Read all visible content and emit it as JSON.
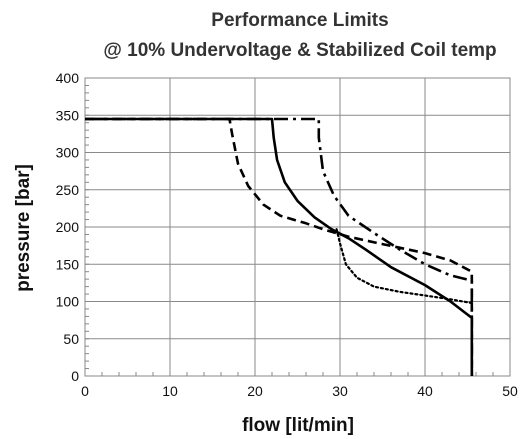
{
  "chart_data": {
    "type": "line",
    "title": "Performance Limits",
    "subtitle": "@ 10% Undervoltage & Stabilized Coil temp",
    "xlabel": "flow [lit/min]",
    "ylabel": "pressure [bar]",
    "xlim": [
      0,
      50
    ],
    "ylim": [
      0,
      400
    ],
    "x_ticks": [
      "0",
      "10",
      "20",
      "30",
      "40",
      "50"
    ],
    "y_ticks": [
      "0",
      "50",
      "100",
      "150",
      "200",
      "250",
      "300",
      "350",
      "400"
    ],
    "grid": true,
    "legend": "none",
    "series": [
      {
        "style": "solid",
        "points": [
          [
            0,
            345
          ],
          [
            22,
            345
          ],
          [
            22.2,
            320
          ],
          [
            22.6,
            290
          ],
          [
            23.5,
            260
          ],
          [
            25,
            235
          ],
          [
            27,
            213
          ],
          [
            29,
            197
          ],
          [
            31,
            185
          ],
          [
            33,
            170
          ],
          [
            36,
            146
          ],
          [
            40,
            122
          ],
          [
            43,
            100
          ],
          [
            45.5,
            78
          ],
          [
            45.5,
            0
          ]
        ]
      },
      {
        "style": "dashed",
        "points": [
          [
            0,
            345
          ],
          [
            17,
            345
          ],
          [
            17.3,
            325
          ],
          [
            18,
            285
          ],
          [
            19.2,
            255
          ],
          [
            21,
            230
          ],
          [
            23,
            215
          ],
          [
            26,
            205
          ],
          [
            28,
            197
          ],
          [
            31,
            187
          ],
          [
            35,
            177
          ],
          [
            40,
            165
          ],
          [
            43,
            155
          ],
          [
            45.5,
            140
          ],
          [
            45.5,
            0
          ]
        ]
      },
      {
        "style": "dashdot",
        "points": [
          [
            0,
            345
          ],
          [
            27.5,
            345
          ],
          [
            27.5,
            320
          ],
          [
            28,
            275
          ],
          [
            29.3,
            242
          ],
          [
            31,
            215
          ],
          [
            34,
            192
          ],
          [
            37,
            170
          ],
          [
            40,
            150
          ],
          [
            43,
            135
          ],
          [
            45.5,
            128
          ],
          [
            45.5,
            0
          ]
        ]
      },
      {
        "style": "dotted",
        "points": [
          [
            29.6,
            197
          ],
          [
            30,
            178
          ],
          [
            30.7,
            150
          ],
          [
            32,
            132
          ],
          [
            34,
            120
          ],
          [
            37,
            113
          ],
          [
            40,
            108
          ],
          [
            43,
            103
          ],
          [
            45.5,
            98
          ]
        ]
      }
    ]
  }
}
